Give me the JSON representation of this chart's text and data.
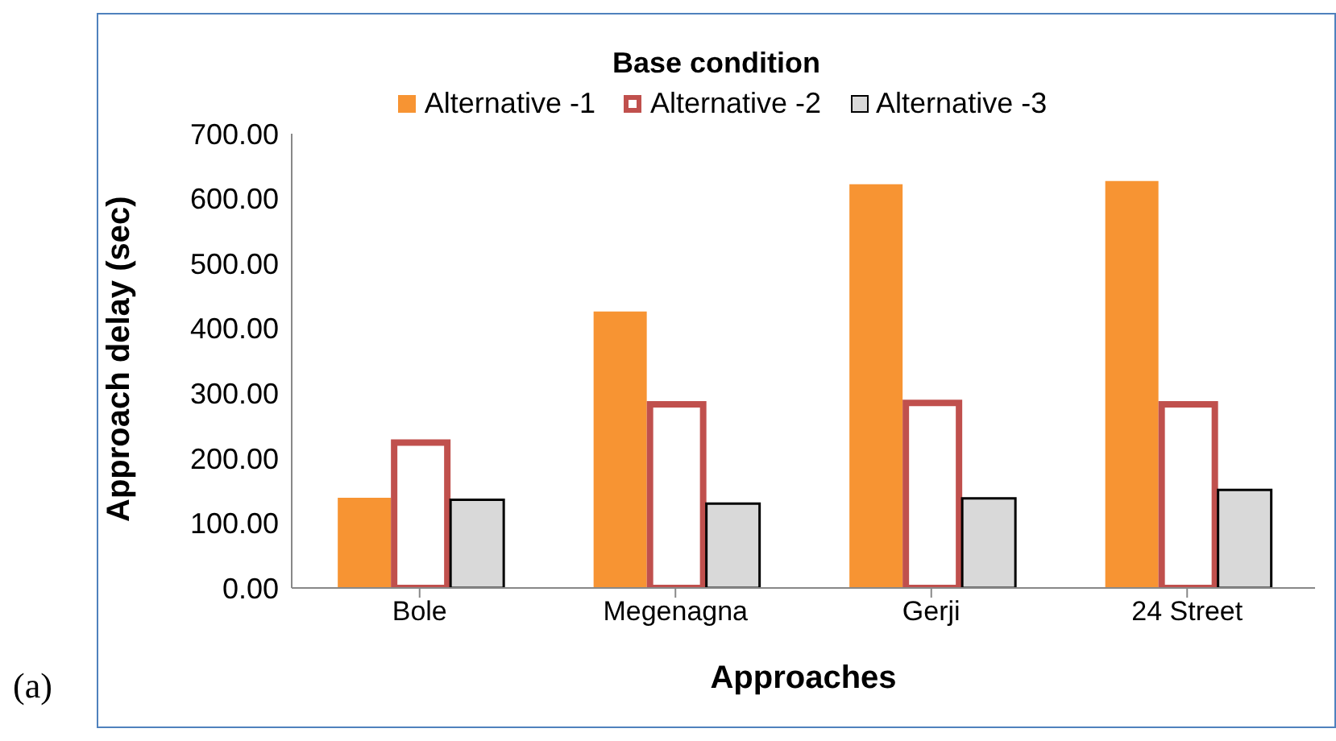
{
  "chart_data": {
    "type": "bar",
    "title": "Base condition",
    "xlabel": "Approaches",
    "ylabel": "Approach delay (sec)",
    "categories": [
      "Bole",
      "Megenagna",
      "Gerji",
      "24 Street"
    ],
    "series": [
      {
        "name": "Alternative -1",
        "color": "#f79433",
        "values": [
          139,
          426,
          622,
          627
        ]
      },
      {
        "name": "Alternative -2",
        "color": "#c0504d",
        "values": [
          224,
          283,
          285,
          283
        ]
      },
      {
        "name": "Alternative -3",
        "color": "#d9d9d9",
        "values": [
          136,
          130,
          138,
          151
        ]
      }
    ],
    "ylim": [
      0,
      700
    ],
    "yticks": [
      {
        "value": 0,
        "label": "0.00"
      },
      {
        "value": 100,
        "label": "100.00"
      },
      {
        "value": 200,
        "label": "200.00"
      },
      {
        "value": 300,
        "label": "300.00"
      },
      {
        "value": 400,
        "label": "400.00"
      },
      {
        "value": 500,
        "label": "500.00"
      },
      {
        "value": 600,
        "label": "600.00"
      },
      {
        "value": 700,
        "label": "700.00"
      }
    ],
    "grid": false,
    "legend": "top",
    "annotations": [
      "(a)"
    ]
  }
}
